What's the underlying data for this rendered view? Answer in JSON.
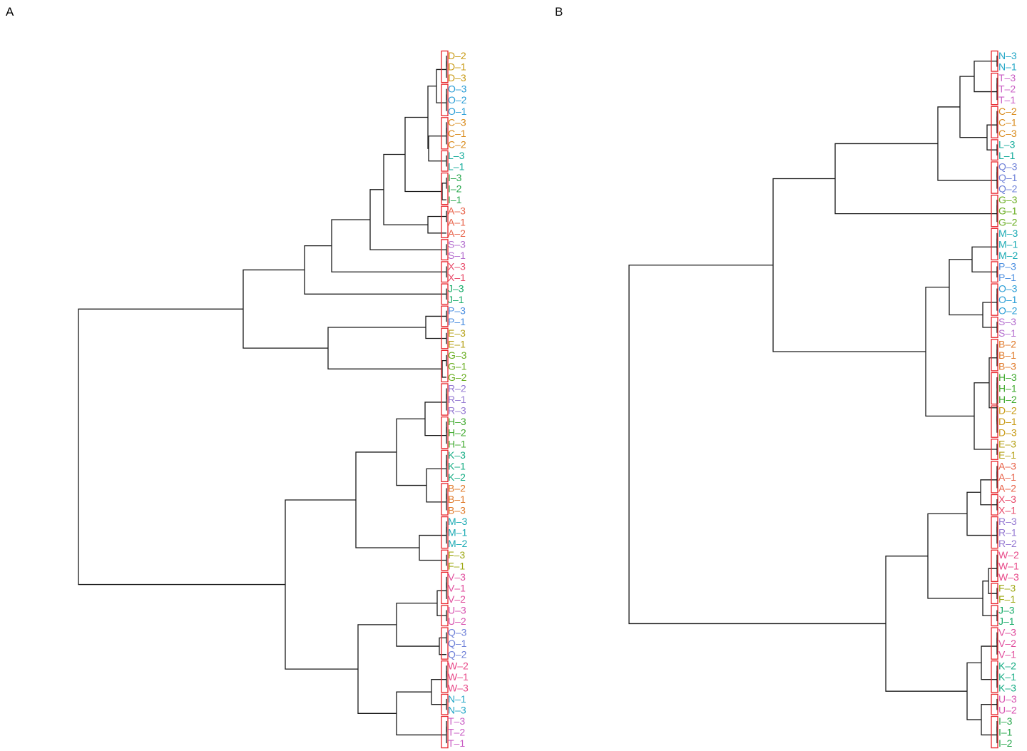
{
  "colors": {
    "A": "#e8634a",
    "B": "#e07a2a",
    "C": "#d98a1a",
    "D": "#c89a14",
    "E": "#b5a015",
    "F": "#9ea814",
    "G": "#6aae22",
    "H": "#3faa2e",
    "I": "#2aa84e",
    "J": "#1aac6a",
    "K": "#16ad84",
    "L": "#17ac9c",
    "M": "#1aaab4",
    "N": "#22a6c6",
    "O": "#2b9ed6",
    "P": "#4a8ee0",
    "Q": "#6e80d8",
    "R": "#9478d2",
    "S": "#b36cce",
    "T": "#c95cc4",
    "U": "#d853b0",
    "V": "#e04c9c",
    "W": "#e84888",
    "X": "#e84a6a",
    "box": "#e8232a",
    "branch": "#1a1a1a"
  },
  "panels": [
    {
      "label": "A",
      "leaves": [
        "D-2",
        "D-1",
        "D-3",
        "O-3",
        "O-2",
        "O-1",
        "C-3",
        "C-1",
        "C-2",
        "L-3",
        "L-1",
        "I-3",
        "I-2",
        "I-1",
        "A-3",
        "A-1",
        "A-2",
        "S-3",
        "S-1",
        "X-3",
        "X-1",
        "J-3",
        "J-1",
        "P-3",
        "P-1",
        "E-3",
        "E-1",
        "G-3",
        "G-1",
        "G-2",
        "R-2",
        "R-1",
        "R-3",
        "H-3",
        "H-2",
        "H-1",
        "K-3",
        "K-1",
        "K-2",
        "B-2",
        "B-1",
        "B-3",
        "M-3",
        "M-1",
        "M-2",
        "F-3",
        "F-1",
        "V-3",
        "V-1",
        "V-2",
        "U-3",
        "U-2",
        "Q-3",
        "Q-1",
        "Q-2",
        "W-2",
        "W-1",
        "W-3",
        "N-1",
        "N-3",
        "T-3",
        "T-2",
        "T-1"
      ]
    },
    {
      "label": "B",
      "leaves": [
        "N-3",
        "N-1",
        "T-3",
        "T-2",
        "T-1",
        "C-2",
        "C-1",
        "C-3",
        "L-3",
        "L-1",
        "Q-3",
        "Q-1",
        "Q-2",
        "G-3",
        "G-1",
        "G-2",
        "M-3",
        "M-1",
        "M-2",
        "P-3",
        "P-1",
        "O-3",
        "O-1",
        "O-2",
        "S-3",
        "S-1",
        "B-2",
        "B-1",
        "B-3",
        "H-3",
        "H-1",
        "H-2",
        "D-2",
        "D-1",
        "D-3",
        "E-3",
        "E-1",
        "A-3",
        "A-1",
        "A-2",
        "X-3",
        "X-1",
        "R-3",
        "R-1",
        "R-2",
        "W-2",
        "W-1",
        "W-3",
        "F-3",
        "F-1",
        "J-3",
        "J-1",
        "V-3",
        "V-2",
        "V-1",
        "K-2",
        "K-1",
        "K-3",
        "U-3",
        "U-2",
        "I-3",
        "I-1",
        "I-2"
      ]
    }
  ]
}
